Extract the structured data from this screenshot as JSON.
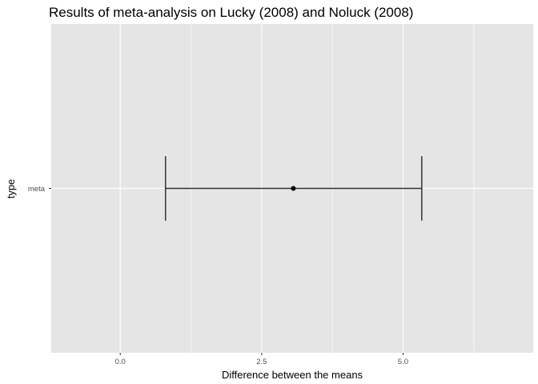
{
  "chart_data": {
    "type": "errorbar",
    "title": "Results of meta-analysis on Lucky (2008) and Noluck (2008)",
    "xlabel": "Difference between the means",
    "ylabel": "type",
    "xlim": [
      -1.22,
      7.3
    ],
    "x_ticks": [
      0.0,
      2.5,
      5.0
    ],
    "x_tick_labels": [
      "0.0",
      "2.5",
      "5.0"
    ],
    "x_minor_ticks": [
      -1.25,
      1.25,
      3.75,
      6.25
    ],
    "categories": [
      "meta"
    ],
    "points": [
      {
        "category": "meta",
        "estimate": 3.06,
        "lower": 0.8,
        "upper": 5.33
      }
    ],
    "grid": true,
    "panel_background": "#e5e5e5",
    "grid_color": "#ffffff",
    "mark_color": "#000000",
    "errorbar_color": "#333333"
  }
}
